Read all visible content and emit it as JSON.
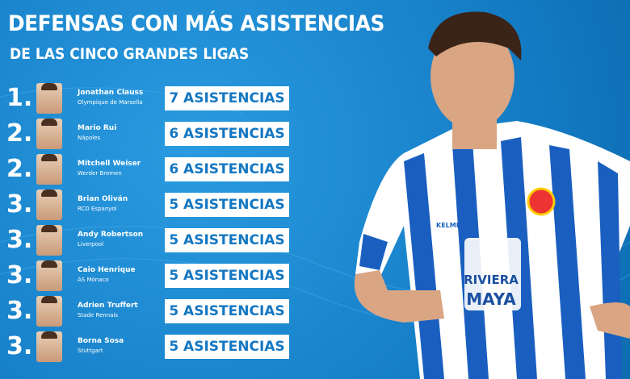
{
  "header": {
    "title": "DEFENSAS CON MÁS ASISTENCIAS",
    "subtitle": "DE LAS CINCO GRANDES LIGAS"
  },
  "rows": [
    {
      "rank": "1.",
      "name": "Jonathan Clauss",
      "club": "Olympique de Marsella",
      "assists": "7 ASISTENCIAS"
    },
    {
      "rank": "2.",
      "name": "Mario Rui",
      "club": "Nápoles",
      "assists": "6 ASISTENCIAS"
    },
    {
      "rank": "2.",
      "name": "Mitchell Weiser",
      "club": "Werder Bremen",
      "assists": "6 ASISTENCIAS"
    },
    {
      "rank": "3.",
      "name": "Brian Oliván",
      "club": "RCD Espanyol",
      "assists": "5 ASISTENCIAS"
    },
    {
      "rank": "3.",
      "name": "Andy Robertson",
      "club": "Liverpool",
      "assists": "5 ASISTENCIAS"
    },
    {
      "rank": "3.",
      "name": "Caio Henrique",
      "club": "AS Mónaco",
      "assists": "5 ASISTENCIAS"
    },
    {
      "rank": "3.",
      "name": "Adrien Truffert",
      "club": "Stade Rennais",
      "assists": "5 ASISTENCIAS"
    },
    {
      "rank": "3.",
      "name": "Borna Sosa",
      "club": "Stuttgart",
      "assists": "5 ASISTENCIAS"
    }
  ],
  "photo": {
    "brand": "KELME",
    "sponsor_top": "RIVIERA",
    "sponsor_bottom": "MAYA"
  }
}
